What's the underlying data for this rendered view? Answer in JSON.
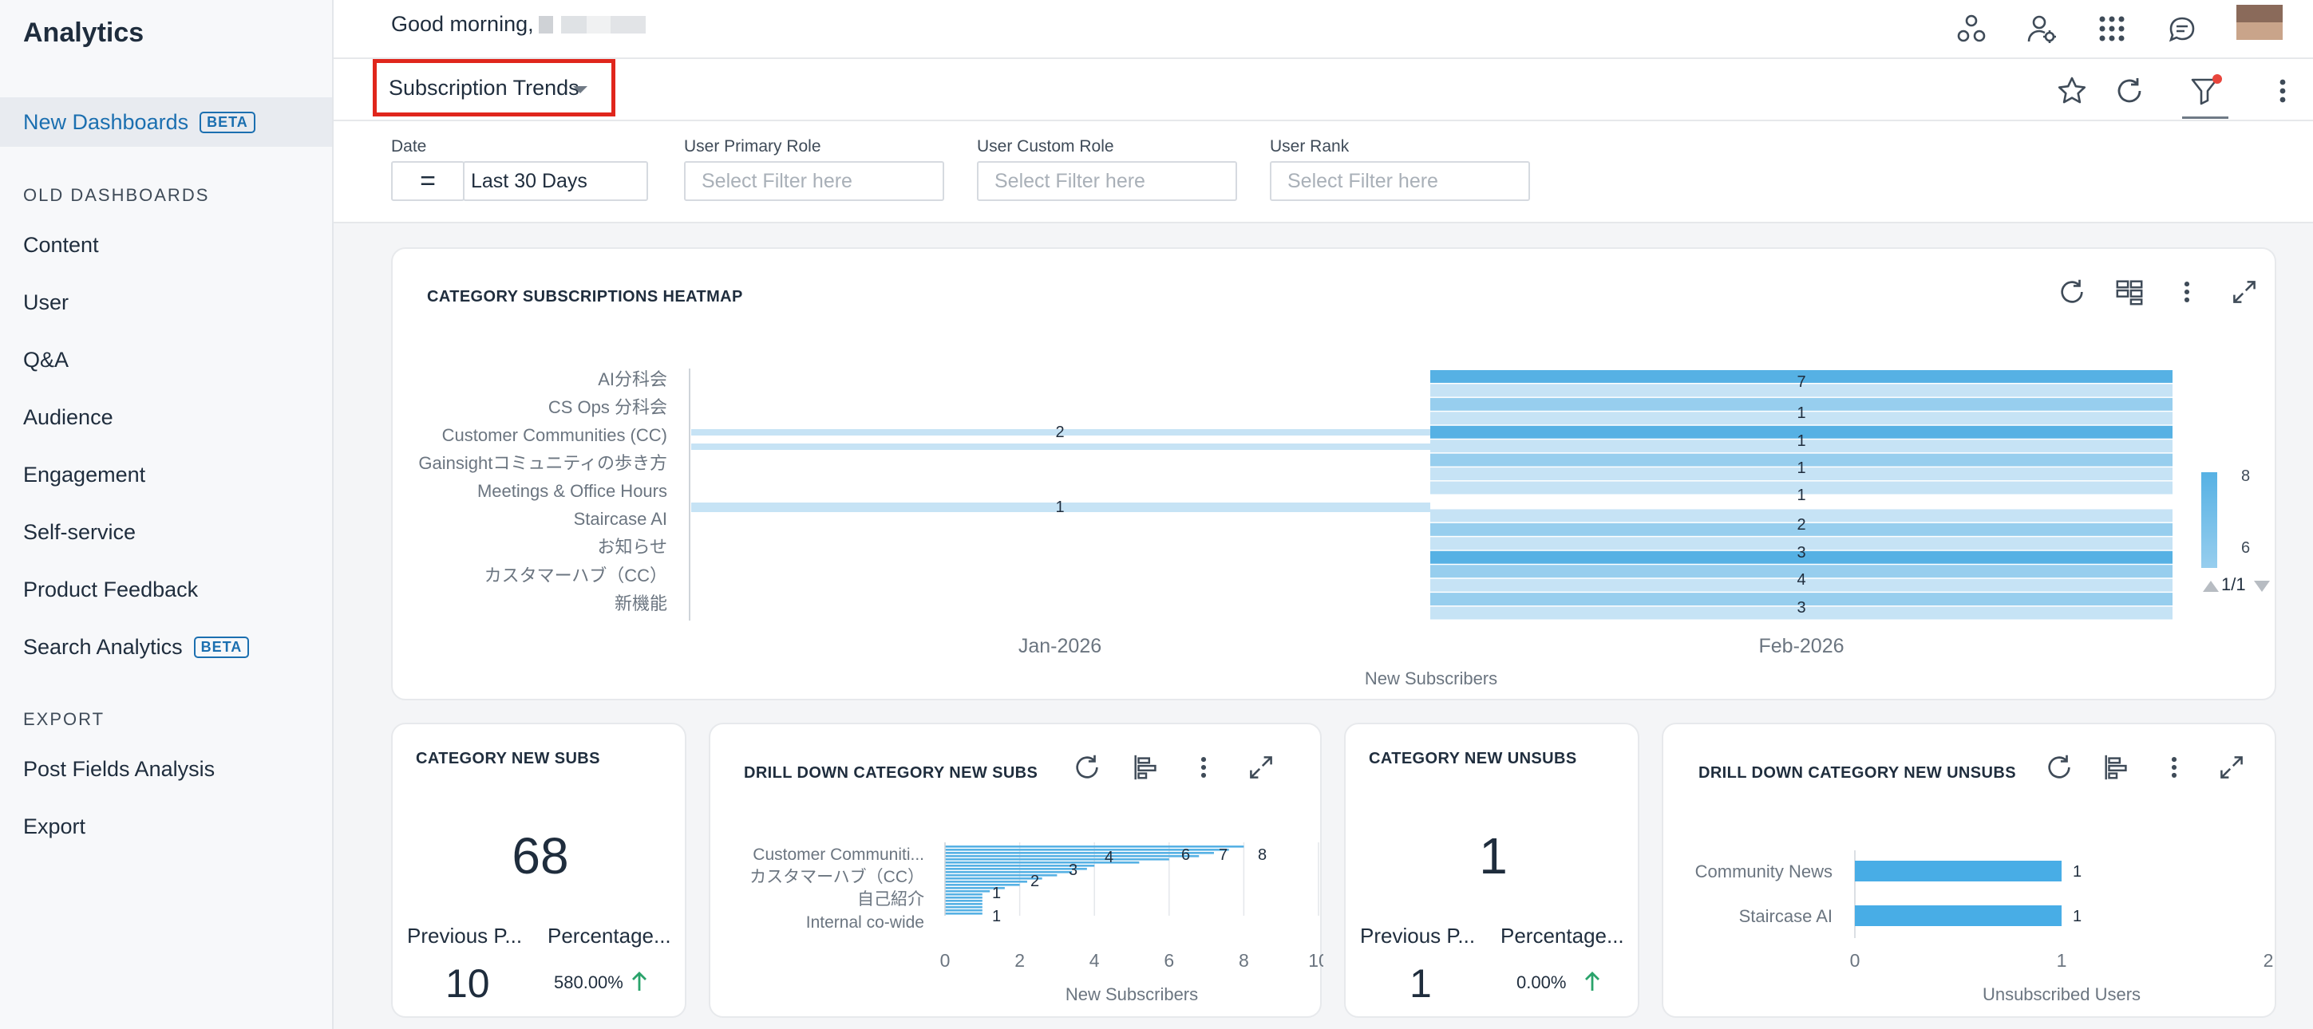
{
  "sidebar": {
    "title": "Analytics",
    "new_dashboards": {
      "label": "New Dashboards",
      "badge": "BETA"
    },
    "old_section": "OLD DASHBOARDS",
    "old_items": [
      "Content",
      "User",
      "Q&A",
      "Audience",
      "Engagement",
      "Self-service",
      "Product Feedback"
    ],
    "search_analytics": {
      "label": "Search Analytics",
      "badge": "BETA"
    },
    "export_section": "EXPORT",
    "export_items": [
      "Post Fields Analysis",
      "Export"
    ]
  },
  "topbar": {
    "greeting": "Good morning,",
    "icons": [
      "community-icon",
      "user-settings-icon",
      "apps-grid-icon",
      "chat-icon"
    ]
  },
  "subbar": {
    "dashboard_selected": "Subscription Trends",
    "icons": [
      "star-icon",
      "refresh-icon",
      "filter-icon",
      "more-vertical-icon"
    ]
  },
  "filters": {
    "date": {
      "label": "Date",
      "operator": "=",
      "value": "Last 30 Days"
    },
    "primary_role": {
      "label": "User Primary Role",
      "placeholder": "Select Filter here"
    },
    "custom_role": {
      "label": "User Custom Role",
      "placeholder": "Select Filter here"
    },
    "rank": {
      "label": "User Rank",
      "placeholder": "Select Filter here"
    }
  },
  "heatmap_card": {
    "title": "CATEGORY SUBSCRIPTIONS HEATMAP",
    "pager": "1/1",
    "chart_data": {
      "type": "heatmap",
      "x_categories": [
        "Jan-2026",
        "Feb-2026"
      ],
      "y_categories": [
        "AI分科会",
        "CS Ops 分科会",
        "Customer Communities (CC)",
        "Gainsightコミュニティの歩き方",
        "Meetings & Office Hours",
        "Staircase AI",
        "お知らせ",
        "カスタマーハブ（CC）",
        "新機能"
      ],
      "xlabel": "New Subscribers",
      "jan_labels": [
        {
          "row": "Customer Communities (CC)",
          "value": 2
        },
        {
          "row": "Staircase AI",
          "value": 1
        }
      ],
      "feb_labels": [
        7,
        1,
        1,
        1,
        1,
        2,
        3,
        4,
        3
      ],
      "legend_ticks": [
        8,
        6
      ],
      "colors": {
        "light": "#c6e3f5",
        "mid": "#97ceee",
        "dark": "#56b1e4"
      }
    }
  },
  "kpi_new_subs": {
    "title": "CATEGORY NEW SUBS",
    "value": "68",
    "prev_label": "Previous P...",
    "pct_label": "Percentage...",
    "prev_value": "10",
    "pct_value": "580.00%"
  },
  "drill_new_subs": {
    "title": "DRILL DOWN CATEGORY NEW SUBS",
    "chart_data": {
      "type": "bar",
      "orientation": "horizontal",
      "categories": [
        "Customer Communiti...",
        "カスタマーハブ（CC）",
        "自己紹介",
        "Internal co-wide"
      ],
      "bar_labels": [
        8,
        7,
        6,
        4,
        3,
        2,
        1,
        1
      ],
      "x_ticks": [
        0,
        2,
        4,
        6,
        8,
        10
      ],
      "xlim": [
        0,
        10
      ],
      "xlabel": "New Subscribers",
      "color": "#56b1e4"
    }
  },
  "kpi_new_unsubs": {
    "title": "CATEGORY NEW UNSUBS",
    "value": "1",
    "prev_label": "Previous P...",
    "pct_label": "Percentage...",
    "prev_value": "1",
    "pct_value": "0.00%"
  },
  "drill_new_unsubs": {
    "title": "DRILL DOWN CATEGORY NEW UNSUBS",
    "chart_data": {
      "type": "bar",
      "orientation": "horizontal",
      "categories": [
        "Community News",
        "Staircase AI"
      ],
      "values": [
        1,
        1
      ],
      "x_ticks": [
        0,
        1,
        2
      ],
      "xlim": [
        0,
        2
      ],
      "xlabel": "Unsubscribed Users",
      "color": "#48ade6"
    }
  }
}
